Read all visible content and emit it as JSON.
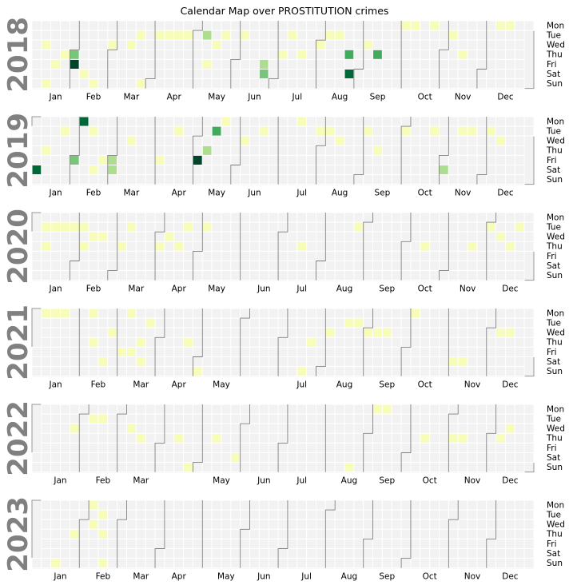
{
  "chart_data": {
    "type": "heatmap",
    "title": "Calendar Map over PROSTITUTION crimes",
    "years": [
      {
        "label": "2018",
        "year": 2018,
        "x_ticks": [
          "Jan",
          "Feb",
          "Mar",
          "Apr",
          "May",
          "Jun",
          "Jul",
          "Aug",
          "Sep",
          "Oct",
          "Nov",
          "Dec"
        ]
      },
      {
        "label": "2019",
        "year": 2019,
        "x_ticks": [
          "Jan",
          "Feb",
          "Mar",
          "Apr",
          "May",
          "Jun",
          "Jul",
          "Aug",
          "Sep",
          "Oct",
          "Nov",
          "Dec"
        ]
      },
      {
        "label": "2020",
        "year": 2020,
        "x_ticks": [
          "Jan",
          "Feb",
          "Mar",
          "Apr",
          "May",
          "Jun",
          "Jul",
          "Aug",
          "Sep",
          "Oct",
          "Nov",
          "Dec"
        ]
      },
      {
        "label": "2021",
        "year": 2021,
        "x_ticks": [
          "Jan",
          "Feb",
          "Mar",
          "Apr",
          "May",
          "Jul",
          "Aug",
          "Sep",
          "Oct",
          "Nov",
          "Dec"
        ]
      },
      {
        "label": "2022",
        "year": 2022,
        "x_ticks": [
          "Jan",
          "Feb",
          "Mar",
          "May",
          "Jun",
          "Jul",
          "Aug",
          "Sep",
          "Oct",
          "Nov",
          "Dec"
        ]
      },
      {
        "label": "2023",
        "year": 2023,
        "x_ticks": [
          "Jan",
          "Feb",
          "Mar",
          "Apr",
          "May",
          "Jun",
          "Jul",
          "Aug",
          "Sep",
          "Oct",
          "Nov",
          "Dec"
        ]
      }
    ],
    "weekday_labels": [
      "Mon",
      "Tue",
      "Wed",
      "Thu",
      "Fri",
      "Sat",
      "Sun"
    ],
    "colormap": "YlGn",
    "color_range": [
      0,
      6
    ],
    "empty_color": "#f2f2f2",
    "days": {
      "2018": [
        [
          "01-10",
          1
        ],
        [
          "01-14",
          1
        ],
        [
          "01-19",
          1
        ],
        [
          "01-25",
          1
        ],
        [
          "02-01",
          3
        ],
        [
          "02-02",
          6
        ],
        [
          "02-10",
          1
        ],
        [
          "02-18",
          1
        ],
        [
          "02-28",
          1
        ],
        [
          "03-14",
          1
        ],
        [
          "03-20",
          1
        ],
        [
          "03-25",
          1
        ],
        [
          "04-03",
          1
        ],
        [
          "04-10",
          1
        ],
        [
          "04-17",
          1
        ],
        [
          "04-24",
          1
        ],
        [
          "05-08",
          2
        ],
        [
          "05-11",
          1
        ],
        [
          "05-16",
          1
        ],
        [
          "05-22",
          1
        ],
        [
          "06-05",
          1
        ],
        [
          "06-22",
          2
        ],
        [
          "06-23",
          3
        ],
        [
          "07-05",
          1
        ],
        [
          "07-10",
          1
        ],
        [
          "07-19",
          1
        ],
        [
          "08-01",
          1
        ],
        [
          "08-07",
          1
        ],
        [
          "08-14",
          1
        ],
        [
          "08-23",
          4
        ],
        [
          "08-25",
          5
        ],
        [
          "09-05",
          1
        ],
        [
          "09-13",
          4
        ],
        [
          "10-01",
          1
        ],
        [
          "10-08",
          1
        ],
        [
          "10-22",
          1
        ],
        [
          "11-06",
          1
        ],
        [
          "11-15",
          1
        ],
        [
          "12-10",
          1
        ],
        [
          "12-17",
          1
        ]
      ],
      "2019": [
        [
          "01-05",
          5
        ],
        [
          "01-10",
          1
        ],
        [
          "01-22",
          1
        ],
        [
          "02-01",
          3
        ],
        [
          "02-04",
          5
        ],
        [
          "02-12",
          1
        ],
        [
          "02-16",
          1
        ],
        [
          "02-22",
          1
        ],
        [
          "03-01",
          2
        ],
        [
          "03-02",
          2
        ],
        [
          "03-13",
          1
        ],
        [
          "04-05",
          1
        ],
        [
          "04-16",
          1
        ],
        [
          "05-03",
          6
        ],
        [
          "05-09",
          2
        ],
        [
          "05-14",
          4
        ],
        [
          "05-20",
          1
        ],
        [
          "06-05",
          1
        ],
        [
          "06-18",
          1
        ],
        [
          "07-15",
          1
        ],
        [
          "07-30",
          1
        ],
        [
          "08-06",
          1
        ],
        [
          "08-14",
          1
        ],
        [
          "09-03",
          1
        ],
        [
          "09-12",
          1
        ],
        [
          "10-01",
          1
        ],
        [
          "10-22",
          1
        ],
        [
          "11-02",
          2
        ],
        [
          "11-12",
          1
        ],
        [
          "11-19",
          1
        ],
        [
          "12-03",
          1
        ],
        [
          "12-11",
          1
        ]
      ],
      "2020": [
        [
          "01-07",
          1
        ],
        [
          "01-09",
          1
        ],
        [
          "01-14",
          1
        ],
        [
          "01-21",
          1
        ],
        [
          "01-28",
          1
        ],
        [
          "02-04",
          1
        ],
        [
          "02-06",
          1
        ],
        [
          "02-12",
          1
        ],
        [
          "02-19",
          1
        ],
        [
          "03-05",
          1
        ],
        [
          "03-10",
          1
        ],
        [
          "04-02",
          1
        ],
        [
          "04-08",
          1
        ],
        [
          "04-16",
          1
        ],
        [
          "04-21",
          1
        ],
        [
          "05-05",
          1
        ],
        [
          "07-16",
          1
        ],
        [
          "08-25",
          1
        ],
        [
          "10-15",
          1
        ],
        [
          "11-19",
          1
        ],
        [
          "12-01",
          1
        ],
        [
          "12-09",
          1
        ],
        [
          "12-17",
          1
        ],
        [
          "12-22",
          1
        ]
      ],
      "2021": [
        [
          "01-04",
          1
        ],
        [
          "01-11",
          1
        ],
        [
          "01-18",
          1
        ],
        [
          "02-08",
          1
        ],
        [
          "02-11",
          1
        ],
        [
          "02-20",
          1
        ],
        [
          "02-24",
          1
        ],
        [
          "03-05",
          1
        ],
        [
          "03-08",
          1
        ],
        [
          "03-12",
          1
        ],
        [
          "03-18",
          1
        ],
        [
          "03-20",
          1
        ],
        [
          "03-23",
          1
        ],
        [
          "04-22",
          1
        ],
        [
          "05-02",
          1
        ],
        [
          "07-18",
          1
        ],
        [
          "07-22",
          1
        ],
        [
          "08-04",
          1
        ],
        [
          "08-17",
          1
        ],
        [
          "08-24",
          1
        ],
        [
          "09-01",
          1
        ],
        [
          "09-08",
          1
        ],
        [
          "09-15",
          1
        ],
        [
          "10-04",
          1
        ],
        [
          "11-06",
          1
        ],
        [
          "11-13",
          1
        ],
        [
          "12-08",
          1
        ],
        [
          "12-15",
          1
        ]
      ],
      "2022": [
        [
          "01-26",
          1
        ],
        [
          "02-08",
          1
        ],
        [
          "02-15",
          1
        ],
        [
          "03-09",
          1
        ],
        [
          "03-17",
          1
        ],
        [
          "04-14",
          1
        ],
        [
          "04-24",
          1
        ],
        [
          "05-12",
          1
        ],
        [
          "05-28",
          1
        ],
        [
          "08-21",
          1
        ],
        [
          "09-05",
          1
        ],
        [
          "09-12",
          1
        ],
        [
          "10-13",
          1
        ],
        [
          "11-03",
          1
        ],
        [
          "11-10",
          1
        ],
        [
          "12-08",
          1
        ],
        [
          "12-14",
          1
        ]
      ],
      "2023": [
        [
          "01-15",
          1
        ],
        [
          "01-26",
          1
        ],
        [
          "02-06",
          1
        ],
        [
          "02-08",
          1
        ],
        [
          "02-14",
          1
        ],
        [
          "02-16",
          1
        ],
        [
          "02-19",
          1
        ]
      ]
    }
  }
}
